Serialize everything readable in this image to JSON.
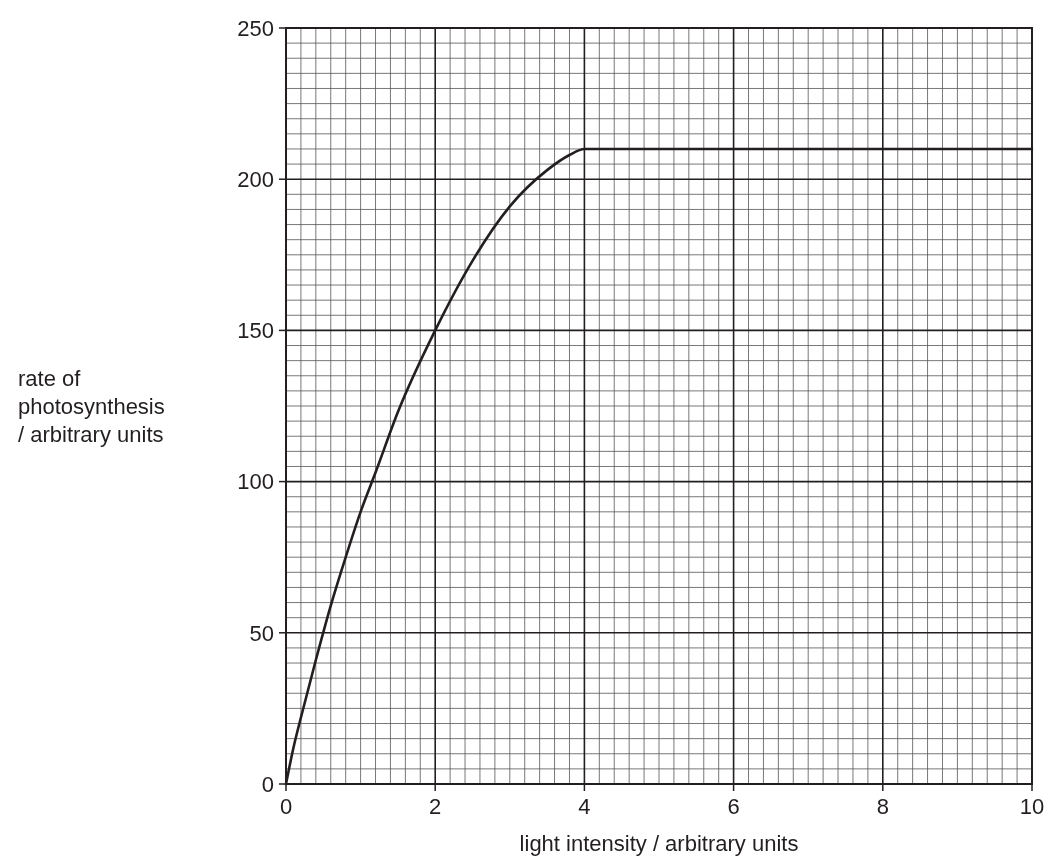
{
  "chart_data": {
    "type": "line",
    "xlabel": "light intensity / arbitrary units",
    "ylabel": "rate of photosynthesis / arbitrary units",
    "series": [
      {
        "color": "#231f20",
        "x": [
          0,
          0.1,
          0.2,
          0.4,
          0.6,
          0.8,
          1,
          1.2,
          1.5,
          2,
          2.5,
          3,
          3.5,
          3.8,
          4,
          10
        ],
        "values": [
          0,
          12,
          22,
          41,
          59,
          75,
          90,
          103,
          123,
          150,
          173,
          191,
          203,
          208,
          210,
          210
        ]
      }
    ],
    "xlim": [
      0,
      10
    ],
    "ylim": [
      0,
      250
    ],
    "xticks": [
      0,
      2,
      4,
      6,
      8,
      10
    ],
    "yticks": [
      0,
      50,
      100,
      150,
      200,
      250
    ],
    "grid": true,
    "marker": "none",
    "line_style": "solid"
  }
}
